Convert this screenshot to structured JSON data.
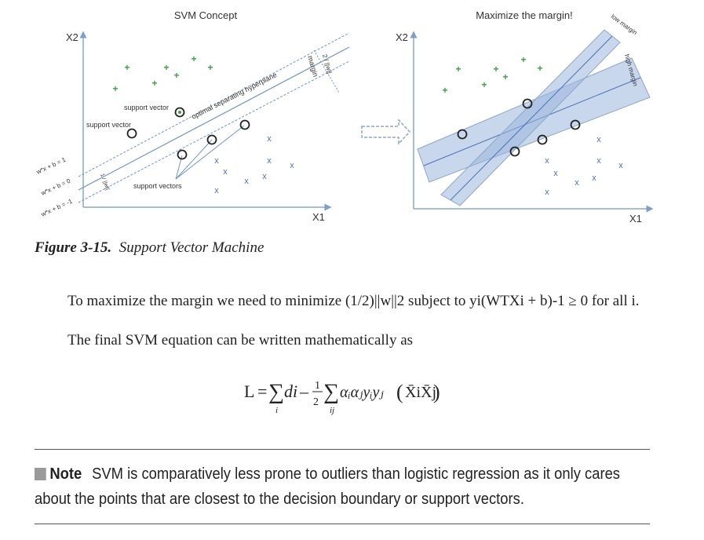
{
  "figure": {
    "left_panel": {
      "title": "SVM Concept",
      "y_axis": "X2",
      "x_axis": "X1",
      "labels": {
        "support_vector_top": "support vector",
        "support_vector_left": "support vector",
        "hyperplane": "optimal separating hyperplane",
        "margin": "margin",
        "margin_formula": "2 / ||w||",
        "small_formula": "1 / ||w||",
        "support_vectors": "support vectors",
        "line_pos": "w*x + b = 1",
        "line_zero": "w*x + b = 0",
        "line_neg": "w*x + b = -1"
      }
    },
    "right_panel": {
      "title": "Maximize the margin!",
      "y_axis": "X2",
      "x_axis": "X1",
      "low_margin": "low margin",
      "high_margin": "high margin"
    }
  },
  "caption": {
    "label": "Figure 3-15.",
    "text": "Support Vector Machine"
  },
  "paragraphs": {
    "p1": "To maximize the margin we need to minimize (1/2)||w||2 subject to yi(WTXi + b)-1 ≥ 0 for all i.",
    "p2": "The final SVM equation can be written mathematically as"
  },
  "equation": {
    "lhs": "L",
    "term1": "di",
    "frac_num": "1",
    "frac_den": "2",
    "term2": "αᵢαⱼyᵢyⱼ",
    "term3": "X̄iX̄j",
    "sub_i": "i",
    "sub_ij": "ij"
  },
  "note": {
    "label": "Note",
    "text": "SVM is comparatively less prone to outliers than logistic regression as it only cares about the points that are closest to the decision boundary or support vectors."
  }
}
